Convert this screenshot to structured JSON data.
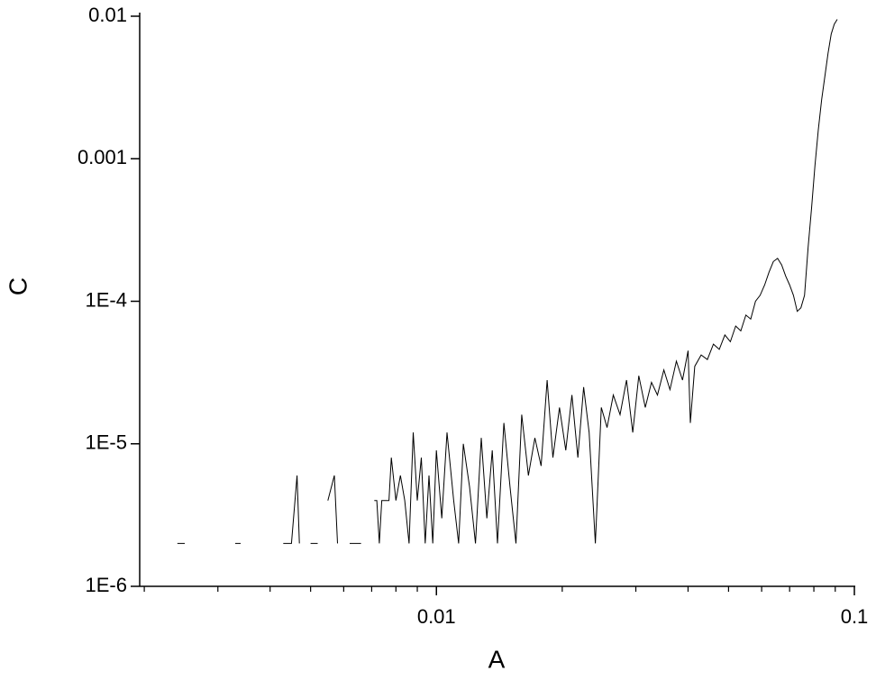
{
  "chart_data": {
    "type": "line",
    "x_label": "A",
    "y_label": "C",
    "xscale": "log",
    "yscale": "log",
    "xlim": [
      0.00195,
      0.1
    ],
    "ylim": [
      1e-06,
      0.01
    ],
    "xticks": [
      0.01,
      0.1
    ],
    "xminorticks": [
      0.002,
      0.003,
      0.004,
      0.005,
      0.006,
      0.007,
      0.008,
      0.009,
      0.02,
      0.03,
      0.04,
      0.05,
      0.06,
      0.07,
      0.08,
      0.09
    ],
    "yticks": [
      0.01,
      0.001,
      {
        "value": 0.0001,
        "label": "1E-4"
      },
      {
        "value": 1e-05,
        "label": "1E-5"
      },
      {
        "value": 1e-06,
        "label": "1E-6"
      }
    ],
    "series": [
      {
        "name": "C",
        "color": "#000000",
        "x": [
          0.0024,
          0.0025,
          null,
          0.0033,
          0.0034,
          null,
          0.0043,
          0.0045,
          0.00464,
          0.0047,
          null,
          0.005,
          0.0052,
          null,
          0.0055,
          0.0057,
          0.0058,
          null,
          0.0062,
          0.0066,
          null,
          0.0071,
          0.0072,
          0.0073,
          0.0074,
          0.0077,
          0.0078,
          0.008,
          0.0082,
          0.0084,
          0.0086,
          0.0088,
          0.009,
          0.0092,
          0.0094,
          0.0096,
          0.0098,
          0.01,
          0.0103,
          0.0106,
          0.011,
          0.0113,
          0.0116,
          0.012,
          0.0124,
          0.0128,
          0.0132,
          0.0136,
          0.014,
          0.0145,
          0.015,
          0.0155,
          0.016,
          0.0166,
          0.0172,
          0.0178,
          0.0184,
          0.019,
          0.0197,
          0.0204,
          0.0211,
          0.0218,
          0.0225,
          0.0232,
          0.024,
          0.0248,
          0.0256,
          0.0265,
          0.0275,
          0.0285,
          0.0295,
          0.0305,
          0.0316,
          0.0327,
          0.0338,
          0.035,
          0.0362,
          0.0375,
          0.0388,
          0.04,
          0.0405,
          0.0415,
          0.043,
          0.0445,
          0.046,
          0.0475,
          0.049,
          0.0505,
          0.052,
          0.0535,
          0.055,
          0.0565,
          0.058,
          0.0595,
          0.061,
          0.0625,
          0.064,
          0.0655,
          0.067,
          0.0685,
          0.07,
          0.0715,
          0.073,
          0.0745,
          0.076,
          0.0775,
          0.079,
          0.0805,
          0.082,
          0.0835,
          0.085,
          0.0865,
          0.088,
          0.0895,
          0.091
        ],
        "values": [
          2e-06,
          2e-06,
          null,
          2e-06,
          2e-06,
          null,
          2e-06,
          2e-06,
          6e-06,
          2e-06,
          null,
          2e-06,
          2e-06,
          null,
          4e-06,
          6e-06,
          2e-06,
          null,
          2e-06,
          2e-06,
          null,
          4e-06,
          4e-06,
          2e-06,
          4e-06,
          4e-06,
          8e-06,
          4e-06,
          6e-06,
          4e-06,
          2e-06,
          1.2e-05,
          4e-06,
          8e-06,
          2e-06,
          6e-06,
          2e-06,
          9e-06,
          3e-06,
          1.2e-05,
          4e-06,
          2e-06,
          1e-05,
          5e-06,
          2e-06,
          1.1e-05,
          3e-06,
          9e-06,
          2e-06,
          1.4e-05,
          5e-06,
          2e-06,
          1.6e-05,
          6e-06,
          1.1e-05,
          7e-06,
          2.8e-05,
          8e-06,
          1.8e-05,
          9e-06,
          2.2e-05,
          8e-06,
          2.5e-05,
          1.2e-05,
          2e-06,
          1.8e-05,
          1.3e-05,
          2.2e-05,
          1.6e-05,
          2.8e-05,
          1.2e-05,
          3e-05,
          1.8e-05,
          2.7e-05,
          2.2e-05,
          3.3e-05,
          2.4e-05,
          3.8e-05,
          2.8e-05,
          4.5e-05,
          1.4e-05,
          3.5e-05,
          4.2e-05,
          3.9e-05,
          5e-05,
          4.6e-05,
          5.8e-05,
          5.2e-05,
          6.7e-05,
          6.2e-05,
          8e-05,
          7.5e-05,
          0.0001,
          0.00011,
          0.00013,
          0.00016,
          0.00019,
          0.0002,
          0.00018,
          0.00015,
          0.00013,
          0.00011,
          8.5e-05,
          9e-05,
          0.00011,
          0.00024,
          0.00045,
          0.0009,
          0.0016,
          0.0026,
          0.0038,
          0.0055,
          0.0075,
          0.0088,
          0.0095
        ]
      }
    ]
  }
}
